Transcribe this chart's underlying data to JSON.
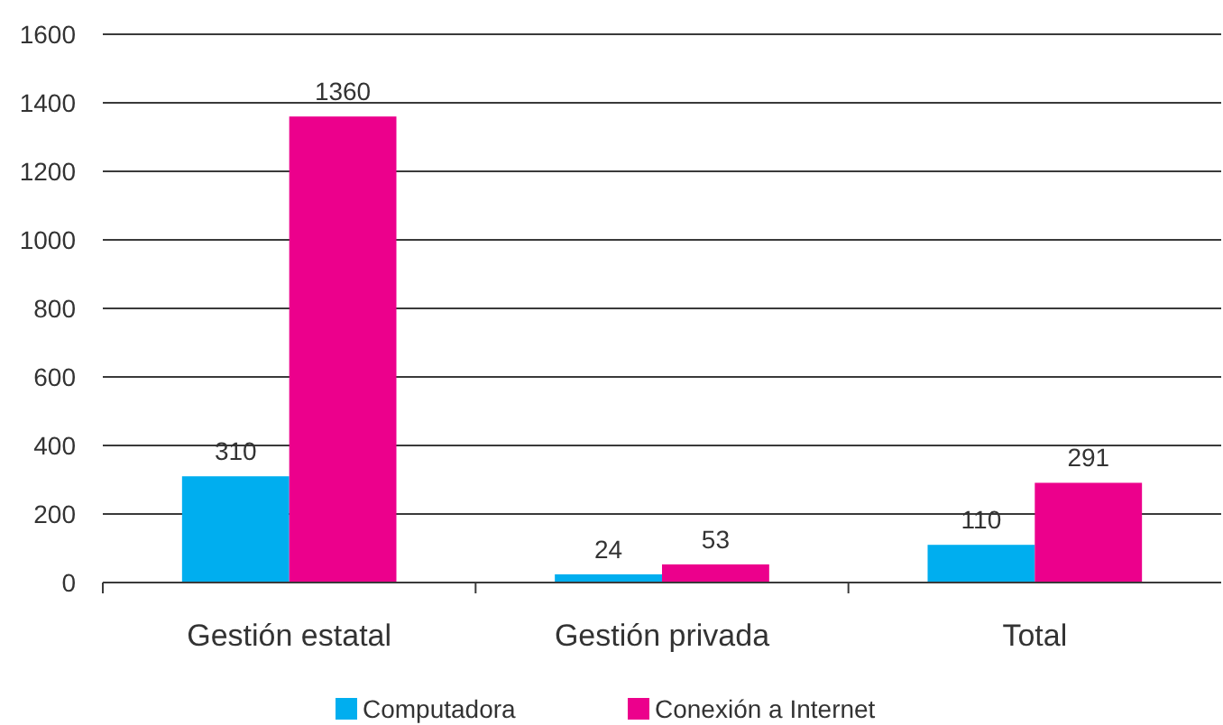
{
  "chart_data": {
    "type": "bar",
    "categories": [
      "Gestión estatal",
      "Gestión privada",
      "Total"
    ],
    "series": [
      {
        "name": "Computadora",
        "color": "#00aeef",
        "values": [
          310,
          24,
          110
        ]
      },
      {
        "name": "Conexión a Internet",
        "color": "#ec008c",
        "values": [
          1360,
          53,
          291
        ]
      }
    ],
    "ylim": [
      0,
      1600
    ],
    "yticks": [
      0,
      200,
      400,
      600,
      800,
      1000,
      1200,
      1400,
      1600
    ],
    "grid": "y",
    "legend": "bottom",
    "data_labels": true
  }
}
